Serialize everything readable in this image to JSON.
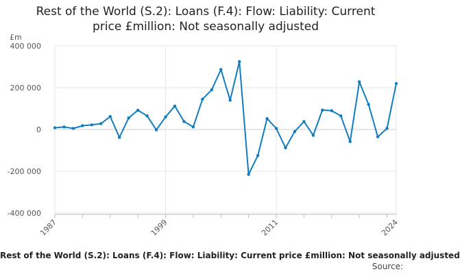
{
  "chart_data": {
    "type": "line",
    "title_lines": [
      "Rest of the World (S.2): Loans (F.4): Flow: Liability: Current",
      "price £million: Not seasonally adjusted"
    ],
    "ylabel": "£m",
    "ylim": [
      -400000,
      400000
    ],
    "yticks": [
      400000,
      200000,
      0,
      -200000,
      -400000
    ],
    "ytick_labels": [
      "400 000",
      "200 000",
      "0",
      "-200 000",
      "-400 000"
    ],
    "xlim": [
      1987,
      2024
    ],
    "xticks": [
      1987,
      1999,
      2011,
      2024
    ],
    "xtick_labels": [
      "1987",
      "1999",
      "2011",
      "2024"
    ],
    "grid": true,
    "series": [
      {
        "name": "Rest of the World (S.2): Loans (F.4): Flow: Liability: Current price £million: Not seasonally adjusted",
        "color": "#0f7bc0",
        "x": [
          1987,
          1988,
          1989,
          1990,
          1991,
          1992,
          1993,
          1994,
          1995,
          1996,
          1997,
          1998,
          1999,
          2000,
          2001,
          2002,
          2003,
          2004,
          2005,
          2006,
          2007,
          2008,
          2009,
          2010,
          2011,
          2012,
          2013,
          2014,
          2015,
          2016,
          2017,
          2018,
          2019,
          2020,
          2021,
          2022,
          2023,
          2024
        ],
        "y": [
          8000,
          12000,
          5000,
          18000,
          22000,
          28000,
          62000,
          -38000,
          55000,
          92000,
          65000,
          -2000,
          60000,
          112000,
          38000,
          12000,
          145000,
          190000,
          287000,
          140000,
          325000,
          -215000,
          -125000,
          52000,
          5000,
          -88000,
          -10000,
          38000,
          -28000,
          93000,
          90000,
          65000,
          -58000,
          228000,
          120000,
          -35000,
          5000,
          220000
        ]
      }
    ],
    "footer_title": "Rest of the World (S.2): Loans (F.4): Flow: Liability: Current price £million: Not seasonally adjusted",
    "source_label": "Source:"
  }
}
